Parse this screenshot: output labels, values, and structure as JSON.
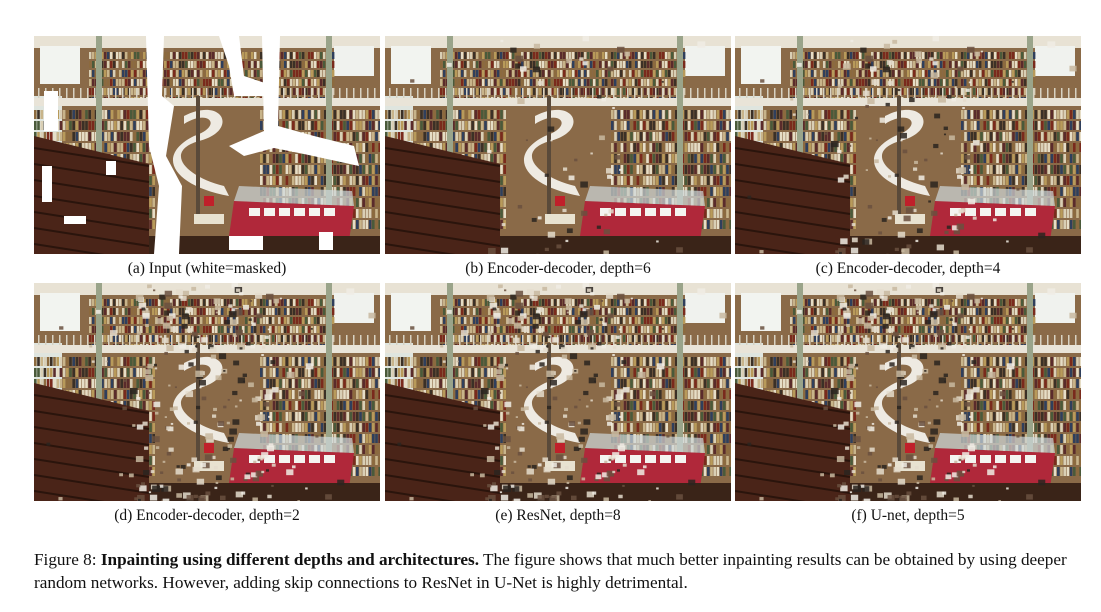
{
  "panels": [
    {
      "id": "a",
      "caption": "(a) Input (white=masked)",
      "masked": true,
      "artifact_level": 0
    },
    {
      "id": "b",
      "caption": "(b) Encoder-decoder, depth=6",
      "masked": false,
      "artifact_level": 1
    },
    {
      "id": "c",
      "caption": "(c) Encoder-decoder, depth=4",
      "masked": false,
      "artifact_level": 2
    },
    {
      "id": "d",
      "caption": "(d) Encoder-decoder, depth=2",
      "masked": false,
      "artifact_level": 3
    },
    {
      "id": "e",
      "caption": "(e) ResNet, depth=8",
      "masked": false,
      "artifact_level": 3
    },
    {
      "id": "f",
      "caption": "(f) U-net, depth=5",
      "masked": false,
      "artifact_level": 3
    }
  ],
  "figure_caption": {
    "label": "Figure 8: ",
    "title": "Inpainting using different depths and architectures.",
    "body": " The figure shows that much better inpainting results can be obtained by using deeper random networks. However, adding skip connections to ResNet in U-Net is highly detrimental."
  }
}
